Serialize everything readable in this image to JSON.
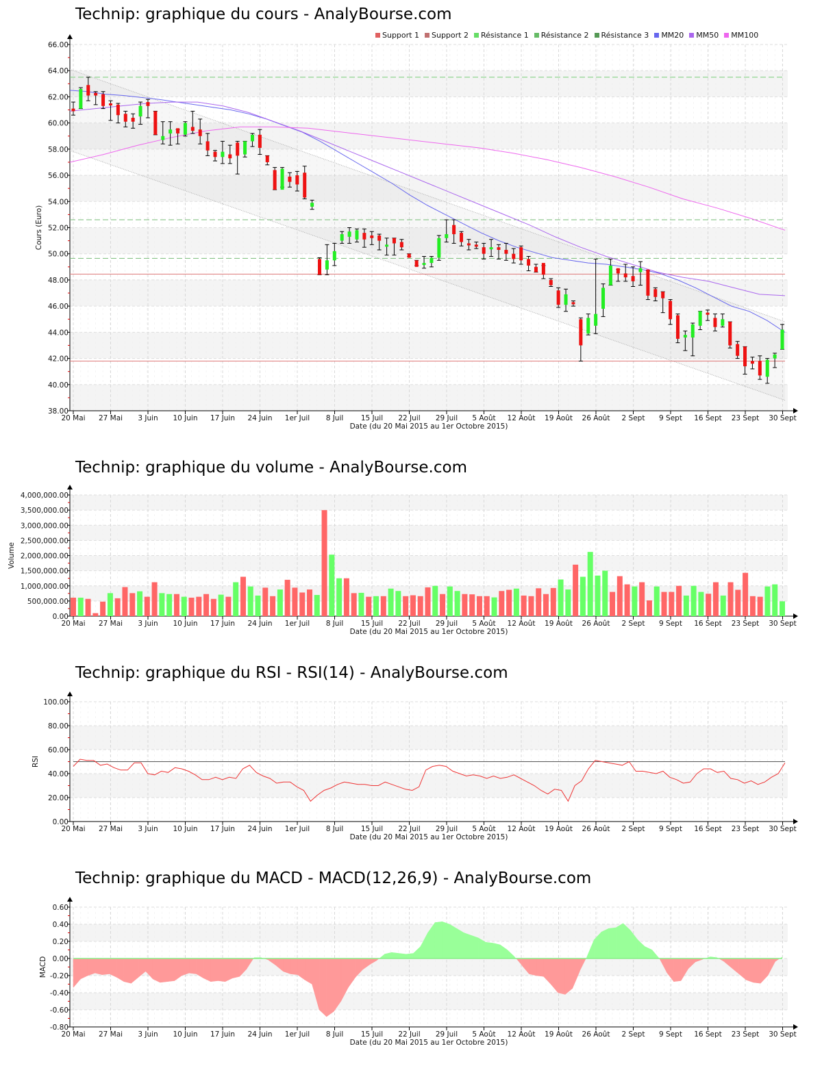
{
  "titles": {
    "price": "Technip: graphique du cours - AnalyBourse.com",
    "volume": "Technip: graphique du volume - AnalyBourse.com",
    "rsi": "Technip: graphique du RSI - RSI(14) - AnalyBourse.com",
    "macd": "Technip: graphique du MACD - MACD(12,26,9) - AnalyBourse.com"
  },
  "legend": [
    {
      "label": "Support 1",
      "color": "#e06060"
    },
    {
      "label": "Support 2",
      "color": "#c07070"
    },
    {
      "label": "Résistance 1",
      "color": "#66dd66"
    },
    {
      "label": "Résistance 2",
      "color": "#66bb66"
    },
    {
      "label": "Résistance 3",
      "color": "#559955"
    },
    {
      "label": "MM20",
      "color": "#6666ee"
    },
    {
      "label": "MM50",
      "color": "#aa66ee"
    },
    {
      "label": "MM100",
      "color": "#ee66ee"
    }
  ],
  "x_axis": {
    "title": "Date (du 20 Mai 2015 au 1er Octobre 2015)",
    "ticks": [
      "20 Mai",
      "27 Mai",
      "3 Juin",
      "10 Juin",
      "17 Juin",
      "24 Juin",
      "1er Juil",
      "8 Juil",
      "15 Juil",
      "22 Juil",
      "29 Juil",
      "5 Août",
      "12 Août",
      "19 Août",
      "26 Août",
      "2 Sept",
      "9 Sept",
      "16 Sept",
      "23 Sept",
      "30 Sept"
    ]
  },
  "chart_data": [
    {
      "type": "candlestick",
      "title": "Technip: graphique du cours - AnalyBourse.com",
      "xlabel": "Date (du 20 Mai 2015 au 1er Octobre 2015)",
      "ylabel": "Cours (Euro)",
      "ylim": [
        38,
        66
      ],
      "yticks": [
        "38.00",
        "40.00",
        "42.00",
        "44.00",
        "46.00",
        "48.00",
        "50.00",
        "52.00",
        "54.00",
        "56.00",
        "58.00",
        "60.00",
        "62.00",
        "64.00",
        "66.00"
      ],
      "grid": true,
      "legend_position": "top-right",
      "levels": {
        "support_1": 48.45,
        "support_2": 41.8,
        "resistance_1": 63.5,
        "resistance_2": 52.6,
        "resistance_3": 49.65
      },
      "channel": {
        "upper_start": 64.1,
        "upper_end": 44.8,
        "lower_start": 57.9,
        "lower_end": 38.8
      },
      "candles": [
        [
          61.1,
          60.9,
          61.6,
          60.6
        ],
        [
          61.1,
          62.6,
          62.7,
          61.1
        ],
        [
          62.9,
          62.1,
          63.5,
          61.7
        ],
        [
          62.3,
          62.1,
          62.4,
          61.4
        ],
        [
          62.2,
          61.3,
          62.4,
          61.1
        ],
        [
          61.5,
          61.4,
          61.7,
          60.2
        ],
        [
          61.4,
          60.6,
          61.5,
          60.0
        ],
        [
          60.7,
          60.1,
          60.9,
          59.7
        ],
        [
          60.4,
          60.1,
          60.7,
          59.6
        ],
        [
          60.5,
          61.3,
          61.6,
          59.9
        ],
        [
          61.6,
          61.3,
          61.8,
          60.4
        ],
        [
          60.9,
          59.1,
          60.9,
          59.1
        ],
        [
          58.7,
          59.0,
          60.1,
          58.4
        ],
        [
          59.2,
          59.5,
          60.1,
          58.3
        ],
        [
          59.6,
          59.2,
          59.5,
          58.4
        ],
        [
          59.1,
          60.0,
          60.1,
          59.0
        ],
        [
          59.7,
          59.4,
          60.9,
          59.2
        ],
        [
          59.5,
          59.0,
          60.3,
          58.4
        ],
        [
          58.6,
          57.9,
          59.2,
          57.5
        ],
        [
          57.8,
          57.4,
          57.9,
          57.1
        ],
        [
          57.4,
          57.8,
          58.6,
          56.9
        ],
        [
          57.6,
          57.3,
          58.3,
          56.9
        ],
        [
          58.5,
          57.5,
          58.6,
          56.1
        ],
        [
          57.6,
          58.6,
          58.6,
          57.4
        ],
        [
          58.6,
          59.1,
          59.2,
          58.2
        ],
        [
          59.1,
          58.1,
          59.5,
          57.6
        ],
        [
          57.5,
          57.0,
          57.5,
          56.8
        ],
        [
          56.4,
          54.9,
          56.6,
          54.9
        ],
        [
          54.9,
          56.5,
          56.6,
          55.1
        ],
        [
          55.9,
          55.5,
          56.2,
          55.1
        ],
        [
          56.0,
          55.3,
          56.3,
          54.8
        ],
        [
          56.2,
          54.3,
          56.7,
          54.2
        ],
        [
          53.6,
          53.9,
          54.1,
          53.4
        ],
        [
          49.6,
          48.4,
          49.7,
          48.4
        ],
        [
          48.8,
          49.5,
          50.7,
          48.4
        ],
        [
          49.5,
          50.2,
          50.8,
          49.1
        ],
        [
          51.0,
          51.5,
          51.7,
          50.8
        ],
        [
          51.3,
          51.7,
          52.0,
          50.8
        ],
        [
          51.1,
          51.8,
          51.9,
          50.9
        ],
        [
          51.6,
          51.1,
          51.9,
          50.5
        ],
        [
          51.4,
          51.2,
          51.7,
          50.7
        ],
        [
          51.4,
          51.0,
          51.5,
          50.3
        ],
        [
          50.7,
          50.7,
          51.2,
          49.9
        ],
        [
          51.2,
          50.8,
          51.2,
          49.9
        ],
        [
          50.9,
          50.5,
          51.1,
          50.3
        ],
        [
          50.0,
          49.7,
          50.0,
          49.8
        ],
        [
          49.5,
          49.0,
          49.5,
          49.1
        ],
        [
          49.3,
          49.3,
          49.8,
          48.9
        ],
        [
          49.3,
          49.7,
          49.8,
          49.0
        ],
        [
          49.7,
          51.2,
          51.4,
          49.5
        ],
        [
          51.2,
          51.5,
          52.6,
          50.9
        ],
        [
          52.2,
          51.5,
          52.6,
          50.8
        ],
        [
          51.6,
          50.9,
          51.7,
          50.6
        ],
        [
          50.8,
          50.7,
          51.1,
          50.3
        ],
        [
          50.7,
          50.6,
          50.9,
          50.4
        ],
        [
          50.5,
          50.0,
          50.8,
          49.6
        ],
        [
          50.4,
          50.5,
          51.1,
          49.8
        ],
        [
          50.5,
          50.3,
          50.7,
          49.6
        ],
        [
          50.3,
          50.0,
          50.8,
          49.5
        ],
        [
          50.0,
          49.6,
          50.4,
          49.3
        ],
        [
          50.5,
          49.5,
          50.6,
          49.2
        ],
        [
          49.6,
          49.1,
          49.8,
          48.7
        ],
        [
          49.0,
          48.6,
          49.2,
          48.6
        ],
        [
          49.3,
          48.4,
          49.1,
          48.1
        ],
        [
          48.0,
          47.6,
          48.1,
          47.5
        ],
        [
          47.2,
          46.1,
          47.4,
          45.9
        ],
        [
          46.1,
          46.9,
          47.3,
          45.6
        ],
        [
          46.3,
          46.2,
          46.4,
          46.0
        ],
        [
          45.0,
          43.0,
          45.1,
          41.8
        ],
        [
          43.9,
          45.1,
          45.4,
          43.8
        ],
        [
          44.5,
          45.4,
          49.6,
          43.9
        ],
        [
          45.8,
          47.4,
          47.7,
          45.2
        ],
        [
          47.6,
          49.1,
          49.6,
          47.6
        ],
        [
          48.9,
          48.5,
          48.8,
          47.9
        ],
        [
          48.5,
          48.2,
          49.2,
          47.9
        ],
        [
          48.3,
          47.9,
          49.0,
          47.5
        ],
        [
          48.6,
          48.9,
          49.4,
          47.6
        ],
        [
          48.8,
          46.8,
          48.7,
          46.5
        ],
        [
          47.3,
          46.7,
          47.4,
          46.4
        ],
        [
          47.1,
          46.6,
          47.1,
          45.5
        ],
        [
          46.4,
          45.0,
          46.5,
          44.6
        ],
        [
          45.3,
          43.5,
          45.4,
          43.2
        ],
        [
          43.6,
          43.8,
          44.1,
          42.6
        ],
        [
          43.6,
          44.6,
          44.7,
          42.2
        ],
        [
          44.5,
          45.6,
          45.6,
          44.2
        ],
        [
          45.5,
          45.4,
          45.7,
          44.9
        ],
        [
          45.1,
          44.4,
          45.4,
          44.1
        ],
        [
          44.5,
          45.0,
          45.4,
          44.4
        ],
        [
          44.8,
          43.0,
          44.8,
          42.8
        ],
        [
          43.1,
          42.2,
          43.3,
          42.0
        ],
        [
          42.9,
          41.4,
          42.9,
          40.8
        ],
        [
          41.8,
          41.6,
          42.1,
          41.2
        ],
        [
          41.8,
          40.7,
          42.2,
          40.4
        ],
        [
          40.6,
          41.9,
          42.0,
          40.1
        ],
        [
          42.0,
          42.3,
          42.4,
          41.3
        ],
        [
          42.7,
          44.2,
          44.6,
          42.7
        ]
      ],
      "series": [
        {
          "name": "MM20",
          "color": "#6666ee",
          "values": [
            62.5,
            62.4,
            62.2,
            62.1,
            61.95,
            61.8,
            61.6,
            61.4,
            61.2,
            61.0,
            60.7,
            60.3,
            59.8,
            59.3,
            58.6,
            57.8,
            57.0,
            56.2,
            55.4,
            54.5,
            53.7,
            53.0,
            52.3,
            51.6,
            51.0,
            50.5,
            50.1,
            49.7,
            49.5,
            49.3,
            49.2,
            49.0,
            48.8,
            48.5,
            48.0,
            47.4,
            46.7,
            46.0,
            45.6,
            44.9,
            44.0
          ]
        },
        {
          "name": "MM50",
          "color": "#aa66ee",
          "values": [
            60.9,
            61.1,
            61.3,
            61.5,
            61.6,
            61.6,
            61.3,
            60.8,
            60.1,
            59.4,
            58.6,
            57.8,
            57.0,
            56.2,
            55.4,
            54.6,
            53.8,
            53.0,
            52.2,
            51.3,
            50.5,
            49.8,
            49.2,
            48.6,
            48.2,
            47.9,
            47.4,
            46.9,
            46.8
          ]
        },
        {
          "name": "MM100",
          "color": "#ee66ee",
          "values": [
            57.0,
            57.6,
            58.3,
            58.9,
            59.4,
            59.7,
            59.7,
            59.6,
            59.3,
            59.0,
            58.7,
            58.4,
            58.1,
            57.7,
            57.2,
            56.6,
            55.9,
            55.1,
            54.2,
            53.5,
            52.7,
            51.8
          ]
        }
      ]
    },
    {
      "type": "bar",
      "title": "Technip: graphique du volume - AnalyBourse.com",
      "xlabel": "Date (du 20 Mai 2015 au 1er Octobre 2015)",
      "ylabel": "Volume",
      "ylim": [
        0,
        4000000
      ],
      "yticks": [
        "0.00",
        "500,000.00",
        "1,000,000.00",
        "1,500,000.00",
        "2,000,000.00",
        "2,500,000.00",
        "3,000,000.00",
        "3,500,000.00",
        "4,000,000.00"
      ],
      "grid": true,
      "values": [
        610000,
        610000,
        570000,
        100000,
        480000,
        760000,
        590000,
        960000,
        760000,
        820000,
        640000,
        1120000,
        760000,
        730000,
        730000,
        640000,
        610000,
        640000,
        730000,
        570000,
        710000,
        640000,
        1120000,
        1300000,
        980000,
        680000,
        940000,
        660000,
        880000,
        1200000,
        940000,
        780000,
        880000,
        700000,
        3500000,
        2030000,
        1250000,
        1250000,
        760000,
        770000,
        640000,
        660000,
        660000,
        910000,
        830000,
        660000,
        690000,
        660000,
        950000,
        1000000,
        730000,
        980000,
        830000,
        730000,
        720000,
        660000,
        660000,
        620000,
        830000,
        870000,
        910000,
        680000,
        660000,
        920000,
        730000,
        930000,
        1210000,
        880000,
        1700000,
        1300000,
        2120000,
        1340000,
        1500000,
        800000,
        1320000,
        1050000,
        980000,
        1120000,
        520000,
        980000,
        800000,
        800000,
        1000000,
        680000,
        1000000,
        800000,
        740000,
        1120000,
        680000,
        1120000,
        870000,
        1430000,
        660000,
        640000,
        980000,
        1050000,
        490000
      ],
      "colors": [
        "r",
        "g",
        "r",
        "r",
        "r",
        "g",
        "r",
        "r",
        "r",
        "g",
        "r",
        "r",
        "g",
        "g",
        "r",
        "g",
        "r",
        "r",
        "r",
        "r",
        "g",
        "r",
        "g",
        "r",
        "g",
        "g",
        "r",
        "r",
        "g",
        "r",
        "r",
        "r",
        "r",
        "g",
        "r",
        "g",
        "g",
        "r",
        "r",
        "g",
        "r",
        "g",
        "r",
        "g",
        "g",
        "r",
        "r",
        "r",
        "r",
        "g",
        "r",
        "g",
        "g",
        "r",
        "r",
        "r",
        "r",
        "g",
        "r",
        "r",
        "g",
        "r",
        "r",
        "r",
        "r",
        "r",
        "g",
        "g",
        "r",
        "g",
        "g",
        "g",
        "g",
        "r",
        "r",
        "r",
        "g",
        "r",
        "r",
        "g",
        "r",
        "r",
        "r",
        "g",
        "g",
        "g",
        "r",
        "r",
        "g",
        "r",
        "r",
        "r",
        "r",
        "r",
        "g",
        "g",
        "g"
      ]
    },
    {
      "type": "line",
      "title": "Technip: graphique du RSI - RSI(14) - AnalyBourse.com",
      "xlabel": "Date (du 20 Mai 2015 au 1er Octobre 2015)",
      "ylabel": "RSI",
      "ylim": [
        0,
        100
      ],
      "yticks": [
        "0.00",
        "20.00",
        "40.00",
        "60.00",
        "80.00",
        "100.00"
      ],
      "reference_line": 50,
      "grid": true,
      "values": [
        46,
        52,
        51,
        51,
        47,
        48,
        45,
        43,
        43,
        49,
        49,
        40,
        39,
        42,
        41,
        45,
        44,
        42,
        39,
        35,
        35,
        37,
        35,
        37,
        36,
        44,
        47,
        41,
        38,
        36,
        32,
        33,
        33,
        29,
        26,
        17,
        22,
        26,
        28,
        31,
        33,
        32,
        31,
        31,
        30,
        30,
        33,
        31,
        29,
        27,
        26,
        29,
        43,
        46,
        47,
        46,
        42,
        40,
        38,
        39,
        38,
        36,
        38,
        36,
        37,
        39,
        36,
        33,
        30,
        26,
        23,
        27,
        26,
        17,
        30,
        34,
        44,
        51,
        50,
        49,
        48,
        47,
        50,
        42,
        42,
        41,
        40,
        42,
        37,
        35,
        32,
        33,
        40,
        44,
        44,
        41,
        42,
        36,
        35,
        32,
        34,
        31,
        33,
        37,
        40,
        49
      ]
    },
    {
      "type": "area",
      "title": "Technip: graphique du MACD - MACD(12,26,9) - AnalyBourse.com",
      "xlabel": "Date (du 20 Mai 2015 au 1er Octobre 2015)",
      "ylabel": "MACD",
      "ylim": [
        -0.8,
        0.6
      ],
      "yticks": [
        "-0.80",
        "-0.60",
        "-0.40",
        "-0.20",
        "0.00",
        "0.20",
        "0.40",
        "0.60"
      ],
      "grid": true,
      "values": [
        -0.34,
        -0.24,
        -0.2,
        -0.17,
        -0.19,
        -0.18,
        -0.22,
        -0.27,
        -0.29,
        -0.22,
        -0.15,
        -0.24,
        -0.28,
        -0.27,
        -0.26,
        -0.2,
        -0.17,
        -0.18,
        -0.23,
        -0.27,
        -0.26,
        -0.27,
        -0.23,
        -0.21,
        -0.12,
        0.01,
        0.01,
        -0.02,
        -0.08,
        -0.15,
        -0.18,
        -0.19,
        -0.25,
        -0.3,
        -0.6,
        -0.68,
        -0.62,
        -0.5,
        -0.34,
        -0.22,
        -0.13,
        -0.07,
        -0.02,
        0.05,
        0.07,
        0.06,
        0.05,
        0.06,
        0.14,
        0.3,
        0.42,
        0.43,
        0.4,
        0.35,
        0.3,
        0.27,
        0.24,
        0.19,
        0.18,
        0.16,
        0.1,
        0.02,
        -0.08,
        -0.18,
        -0.2,
        -0.21,
        -0.3,
        -0.4,
        -0.42,
        -0.35,
        -0.15,
        0.02,
        0.22,
        0.31,
        0.35,
        0.36,
        0.41,
        0.33,
        0.22,
        0.14,
        0.1,
        0.0,
        -0.16,
        -0.27,
        -0.26,
        -0.12,
        -0.04,
        -0.01,
        0.02,
        0.01,
        -0.04,
        -0.11,
        -0.18,
        -0.25,
        -0.28,
        -0.29,
        -0.2,
        -0.04,
        0.02
      ]
    }
  ]
}
